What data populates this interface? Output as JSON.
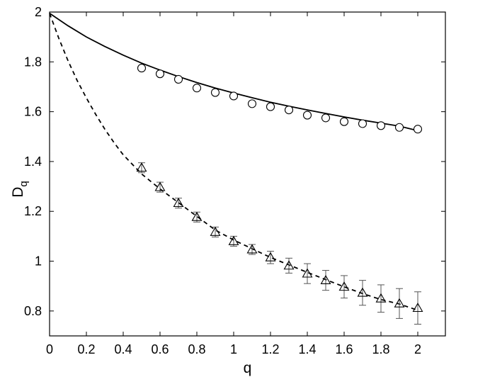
{
  "chart_data": {
    "type": "scatter",
    "title": "",
    "xlabel": "q",
    "ylabel": "D",
    "ylabel_subscript": "q",
    "xlim": [
      0,
      2.15
    ],
    "ylim": [
      0.7,
      2.0
    ],
    "grid": false,
    "legend": "none",
    "x_ticks": [
      {
        "value": 0,
        "label": "0"
      },
      {
        "value": 0.2,
        "label": "0.2"
      },
      {
        "value": 0.4,
        "label": "0.4"
      },
      {
        "value": 0.6,
        "label": "0.6"
      },
      {
        "value": 0.8,
        "label": "0.8"
      },
      {
        "value": 1.0,
        "label": "1"
      },
      {
        "value": 1.2,
        "label": "1.2"
      },
      {
        "value": 1.4,
        "label": "1.4"
      },
      {
        "value": 1.6,
        "label": "1.6"
      },
      {
        "value": 1.8,
        "label": "1.8"
      },
      {
        "value": 2.0,
        "label": "2"
      }
    ],
    "y_ticks": [
      {
        "value": 0.8,
        "label": "0.8"
      },
      {
        "value": 1.0,
        "label": "1"
      },
      {
        "value": 1.2,
        "label": "1.2"
      },
      {
        "value": 1.4,
        "label": "1.4"
      },
      {
        "value": 1.6,
        "label": "1.6"
      },
      {
        "value": 1.8,
        "label": "1.8"
      },
      {
        "value": 2.0,
        "label": "2"
      }
    ],
    "series": [
      {
        "marker": "circle",
        "color": "#000000",
        "x": [
          0.5,
          0.6,
          0.7,
          0.8,
          0.9,
          1.0,
          1.1,
          1.2,
          1.3,
          1.4,
          1.5,
          1.6,
          1.7,
          1.8,
          1.9,
          2.0
        ],
        "y": [
          1.775,
          1.752,
          1.73,
          1.695,
          1.677,
          1.663,
          1.632,
          1.62,
          1.607,
          1.586,
          1.575,
          1.56,
          1.552,
          1.544,
          1.537,
          1.53
        ]
      },
      {
        "marker": "triangle",
        "color": "#000000",
        "x": [
          0.5,
          0.6,
          0.7,
          0.8,
          0.9,
          1.0,
          1.1,
          1.2,
          1.3,
          1.4,
          1.5,
          1.6,
          1.7,
          1.8,
          1.9,
          2.0
        ],
        "y": [
          1.375,
          1.297,
          1.233,
          1.177,
          1.117,
          1.08,
          1.047,
          1.015,
          0.982,
          0.95,
          0.923,
          0.897,
          0.873,
          0.85,
          0.83,
          0.812
        ],
        "err": [
          0.02,
          0.02,
          0.02,
          0.02,
          0.02,
          0.02,
          0.02,
          0.025,
          0.03,
          0.04,
          0.04,
          0.045,
          0.05,
          0.055,
          0.06,
          0.065
        ]
      }
    ],
    "curves": [
      {
        "style": "solid",
        "color": "#000000",
        "x": [
          0,
          0.1,
          0.2,
          0.3,
          0.4,
          0.5,
          0.6,
          0.7,
          0.8,
          0.9,
          1.0,
          1.1,
          1.2,
          1.3,
          1.4,
          1.5,
          1.6,
          1.7,
          1.8,
          1.9,
          2.0
        ],
        "y": [
          1.995,
          1.945,
          1.9,
          1.862,
          1.827,
          1.795,
          1.767,
          1.741,
          1.717,
          1.695,
          1.675,
          1.656,
          1.638,
          1.622,
          1.607,
          1.593,
          1.579,
          1.566,
          1.554,
          1.542,
          1.524
        ]
      },
      {
        "style": "dashed",
        "color": "#000000",
        "x": [
          0,
          0.05,
          0.1,
          0.15,
          0.2,
          0.25,
          0.3,
          0.35,
          0.4,
          0.5,
          0.6,
          0.7,
          0.8,
          0.9,
          1.0,
          1.1,
          1.2,
          1.3,
          1.4,
          1.5,
          1.6,
          1.7,
          1.8,
          1.9,
          2.0
        ],
        "y": [
          1.995,
          1.895,
          1.805,
          1.725,
          1.655,
          1.59,
          1.53,
          1.476,
          1.427,
          1.35,
          1.29,
          1.235,
          1.18,
          1.125,
          1.085,
          1.05,
          1.015,
          0.985,
          0.955,
          0.926,
          0.897,
          0.87,
          0.846,
          0.828,
          0.803
        ]
      }
    ]
  }
}
